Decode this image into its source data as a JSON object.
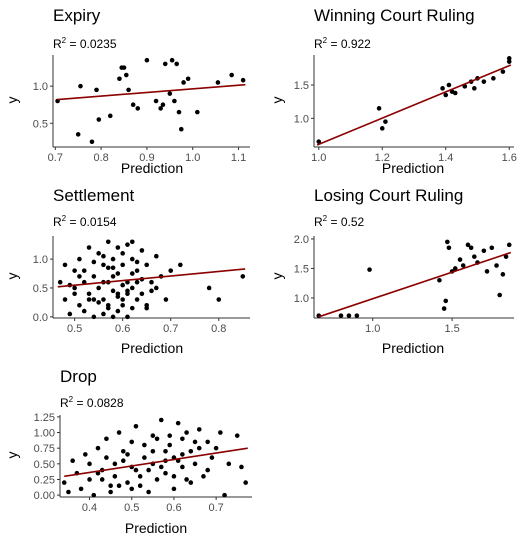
{
  "chart_data": [
    {
      "type": "scatter",
      "title": "Expiry",
      "r2_label": "0.0235",
      "xlabel": "Prediction",
      "ylabel": "y",
      "xlim": [
        0.695,
        1.125
      ],
      "ylim": [
        0.18,
        1.42
      ],
      "xticks": [
        0.7,
        0.8,
        0.9,
        1.0,
        1.1
      ],
      "xtick_labels": [
        "0.7",
        "0.8",
        "0.9",
        "1.0",
        "1.1"
      ],
      "yticks": [
        0.5,
        1.0
      ],
      "ytick_labels": [
        "0.5",
        "1.0"
      ],
      "fit_line": {
        "x": [
          0.705,
          1.115
        ],
        "y": [
          0.82,
          1.02
        ]
      },
      "x": [
        0.705,
        0.75,
        0.755,
        0.78,
        0.79,
        0.795,
        0.82,
        0.84,
        0.845,
        0.855,
        0.85,
        0.86,
        0.87,
        0.88,
        0.9,
        0.92,
        0.93,
        0.935,
        0.94,
        0.95,
        0.955,
        0.96,
        0.965,
        0.97,
        0.975,
        0.98,
        0.99,
        1.01,
        1.055,
        1.085,
        1.11
      ],
      "y": [
        0.8,
        0.35,
        1.0,
        0.25,
        0.95,
        0.55,
        0.6,
        1.1,
        1.25,
        1.15,
        1.25,
        0.95,
        0.75,
        0.7,
        1.35,
        0.8,
        0.7,
        0.75,
        1.3,
        0.9,
        1.35,
        0.8,
        1.3,
        0.65,
        0.42,
        1.05,
        1.1,
        0.65,
        1.05,
        1.15,
        1.08
      ]
    },
    {
      "type": "scatter",
      "title": "Winning Court Ruling",
      "r2_label": "0.922",
      "xlabel": "Prediction",
      "ylabel": "y",
      "xlim": [
        0.985,
        1.615
      ],
      "ylim": [
        0.57,
        1.95
      ],
      "xticks": [
        1.0,
        1.2,
        1.4,
        1.6
      ],
      "xtick_labels": [
        "1.0",
        "1.2",
        "1.4",
        "1.6"
      ],
      "yticks": [
        1.0,
        1.5
      ],
      "ytick_labels": [
        "1.0",
        "1.5"
      ],
      "fit_line": {
        "x": [
          0.995,
          1.605
        ],
        "y": [
          0.6,
          1.8
        ]
      },
      "x": [
        1.0,
        1.19,
        1.2,
        1.21,
        1.39,
        1.4,
        1.41,
        1.42,
        1.43,
        1.46,
        1.48,
        1.49,
        1.5,
        1.52,
        1.55,
        1.58,
        1.6,
        1.6
      ],
      "y": [
        0.65,
        1.15,
        0.85,
        0.95,
        1.45,
        1.35,
        1.5,
        1.4,
        1.38,
        1.48,
        1.55,
        1.45,
        1.6,
        1.55,
        1.6,
        1.7,
        1.85,
        1.9
      ]
    },
    {
      "type": "scatter",
      "title": "Settlement",
      "r2_label": "0.0154",
      "xlabel": "Prediction",
      "ylabel": "y",
      "xlim": [
        0.455,
        0.865
      ],
      "ylim": [
        -0.02,
        1.4
      ],
      "xticks": [
        0.5,
        0.6,
        0.7,
        0.8
      ],
      "xtick_labels": [
        "0.5",
        "0.6",
        "0.7",
        "0.8"
      ],
      "yticks": [
        0.0,
        0.5,
        1.0
      ],
      "ytick_labels": [
        "0.0",
        "0.5",
        "1.0"
      ],
      "fit_line": {
        "x": [
          0.465,
          0.855
        ],
        "y": [
          0.52,
          0.83
        ]
      },
      "x": [
        0.47,
        0.48,
        0.49,
        0.5,
        0.5,
        0.51,
        0.51,
        0.52,
        0.52,
        0.53,
        0.53,
        0.54,
        0.54,
        0.55,
        0.55,
        0.56,
        0.56,
        0.56,
        0.57,
        0.57,
        0.57,
        0.58,
        0.58,
        0.58,
        0.59,
        0.59,
        0.59,
        0.6,
        0.6,
        0.6,
        0.61,
        0.61,
        0.61,
        0.62,
        0.62,
        0.62,
        0.63,
        0.63,
        0.64,
        0.64,
        0.65,
        0.65,
        0.66,
        0.67,
        0.68,
        0.69,
        0.7,
        0.72,
        0.78,
        0.8,
        0.85,
        0.5,
        0.52,
        0.54,
        0.56,
        0.58,
        0.6,
        0.62,
        0.64,
        0.66,
        0.55,
        0.57,
        0.59,
        0.61,
        0.63,
        0.53,
        0.51,
        0.49,
        0.48,
        0.6,
        0.62,
        0.58,
        0.56,
        0.54,
        0.57,
        0.59,
        0.61,
        0.63,
        0.65,
        0.67
      ],
      "y": [
        0.6,
        0.3,
        0.05,
        0.8,
        0.4,
        0.2,
        1.0,
        0.6,
        0.1,
        1.2,
        0.4,
        0.7,
        0.0,
        1.1,
        0.5,
        0.9,
        0.3,
        0.05,
        1.3,
        0.6,
        0.2,
        1.0,
        0.7,
        0.0,
        1.2,
        0.4,
        0.1,
        0.9,
        0.55,
        0.2,
        1.25,
        0.6,
        0.0,
        1.0,
        0.5,
        0.15,
        0.8,
        0.3,
        1.15,
        0.4,
        0.9,
        0.2,
        0.6,
        1.05,
        0.7,
        0.3,
        0.8,
        0.9,
        0.5,
        0.3,
        0.7,
        0.5,
        0.8,
        0.95,
        1.05,
        0.85,
        1.1,
        0.75,
        0.65,
        0.45,
        0.25,
        0.15,
        0.35,
        0.45,
        0.95,
        0.3,
        0.7,
        0.55,
        0.9,
        0.3,
        1.3,
        0.45,
        0.6,
        0.3,
        0.85,
        0.75,
        0.4,
        0.6,
        0.15,
        0.5
      ]
    },
    {
      "type": "scatter",
      "title": "Losing Court Ruling",
      "r2_label": "0.52",
      "xlabel": "Prediction",
      "ylabel": "y",
      "xlim": [
        0.63,
        1.89
      ],
      "ylim": [
        0.66,
        2.05
      ],
      "xticks": [
        1.0,
        1.5
      ],
      "xtick_labels": [
        "1.0",
        "1.5"
      ],
      "yticks": [
        1.0,
        1.5,
        2.0
      ],
      "ytick_labels": [
        "1.0",
        "1.5",
        "2.0"
      ],
      "fit_line": {
        "x": [
          0.66,
          1.87
        ],
        "y": [
          0.68,
          1.77
        ]
      },
      "x": [
        0.66,
        0.8,
        0.85,
        0.9,
        0.98,
        1.42,
        1.45,
        1.46,
        1.47,
        1.48,
        1.5,
        1.52,
        1.55,
        1.57,
        1.6,
        1.62,
        1.64,
        1.66,
        1.7,
        1.72,
        1.75,
        1.78,
        1.8,
        1.82,
        1.84,
        1.86
      ],
      "y": [
        0.7,
        0.7,
        0.7,
        0.7,
        1.48,
        1.3,
        0.82,
        0.95,
        1.95,
        1.85,
        1.45,
        1.5,
        1.65,
        1.55,
        1.9,
        1.85,
        1.7,
        1.6,
        1.8,
        1.45,
        1.85,
        1.55,
        1.05,
        1.4,
        1.7,
        1.9
      ]
    },
    {
      "type": "scatter",
      "title": "Drop",
      "r2_label": "0.0828",
      "xlabel": "Prediction",
      "ylabel": "y",
      "xlim": [
        0.33,
        0.785
      ],
      "ylim": [
        -0.03,
        1.28
      ],
      "xticks": [
        0.4,
        0.5,
        0.6,
        0.7
      ],
      "xtick_labels": [
        "0.4",
        "0.5",
        "0.6",
        "0.7"
      ],
      "yticks": [
        0.0,
        0.25,
        0.5,
        0.75,
        1.0,
        1.25
      ],
      "ytick_labels": [
        "0.00",
        "0.25",
        "0.50",
        "0.75",
        "1.00",
        "1.25"
      ],
      "fit_line": {
        "x": [
          0.34,
          0.775
        ],
        "y": [
          0.3,
          0.75
        ]
      },
      "x": [
        0.34,
        0.35,
        0.36,
        0.38,
        0.39,
        0.4,
        0.41,
        0.42,
        0.43,
        0.44,
        0.45,
        0.46,
        0.47,
        0.48,
        0.49,
        0.5,
        0.5,
        0.51,
        0.52,
        0.53,
        0.54,
        0.55,
        0.55,
        0.56,
        0.57,
        0.58,
        0.58,
        0.59,
        0.6,
        0.6,
        0.61,
        0.62,
        0.62,
        0.63,
        0.64,
        0.65,
        0.66,
        0.67,
        0.68,
        0.69,
        0.7,
        0.71,
        0.72,
        0.73,
        0.75,
        0.76,
        0.77,
        0.42,
        0.44,
        0.46,
        0.48,
        0.52,
        0.54,
        0.56,
        0.58,
        0.6,
        0.62,
        0.64,
        0.66,
        0.4,
        0.5,
        0.57,
        0.63,
        0.68,
        0.45,
        0.53,
        0.61,
        0.37,
        0.47,
        0.55,
        0.59,
        0.65,
        0.49,
        0.51,
        0.43
      ],
      "y": [
        0.2,
        0.05,
        0.55,
        0.1,
        0.65,
        0.25,
        0.0,
        0.75,
        0.4,
        0.9,
        0.15,
        0.3,
        1.0,
        0.55,
        0.2,
        0.45,
        0.85,
        1.1,
        0.3,
        0.6,
        0.05,
        0.95,
        0.5,
        0.25,
        1.2,
        0.7,
        0.35,
        0.8,
        0.1,
        0.6,
        1.15,
        0.45,
        0.9,
        0.25,
        0.7,
        0.5,
        1.05,
        0.3,
        0.85,
        0.6,
        0.75,
        1.0,
        0.0,
        0.5,
        0.95,
        0.45,
        0.2,
        0.35,
        0.6,
        0.5,
        0.7,
        0.15,
        0.4,
        0.9,
        0.55,
        0.3,
        0.65,
        0.2,
        0.75,
        0.5,
        0.1,
        0.45,
        1.0,
        0.4,
        0.05,
        0.8,
        0.55,
        0.35,
        0.15,
        0.7,
        0.95,
        0.85,
        0.65,
        0.4,
        0.25
      ]
    }
  ],
  "style": {
    "point_color": "#000000",
    "fit_color": "#8b0000",
    "axis_color": "#333333"
  }
}
